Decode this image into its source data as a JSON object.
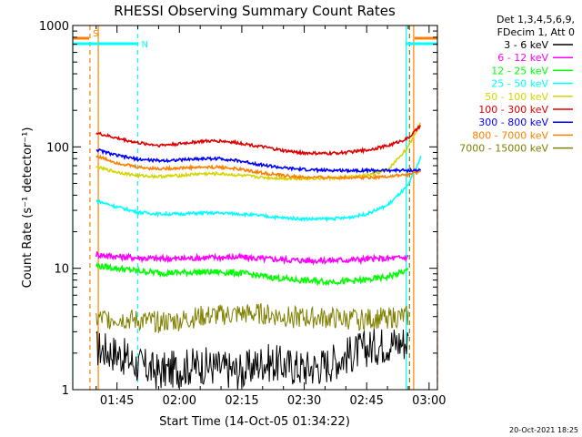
{
  "chart_data": {
    "type": "line",
    "title": "RHESSI Observing Summary Count Rates",
    "xlabel": "Start Time (14-Oct-05 01:34:22)",
    "ylabel": "Count Rate (s⁻¹ detector⁻¹)",
    "yscale": "log",
    "ylim": [
      1,
      1000
    ],
    "xlim_minutes": [
      94.37,
      182
    ],
    "x_ticks": [
      {
        "label": "01:45",
        "minutes": 105
      },
      {
        "label": "02:00",
        "minutes": 120
      },
      {
        "label": "02:15",
        "minutes": 135
      },
      {
        "label": "02:30",
        "minutes": 150
      },
      {
        "label": "02:45",
        "minutes": 165
      },
      {
        "label": "03:00",
        "minutes": 180
      }
    ],
    "y_ticks": [
      {
        "label": "1",
        "value": 1
      },
      {
        "label": "10",
        "value": 10
      },
      {
        "label": "100",
        "value": 100
      },
      {
        "label": "1000",
        "value": 1000
      }
    ],
    "grid": false,
    "legend_position": "right",
    "legend_header": [
      "Det 1,3,4,5,6,9,",
      "FDecim 1, Att 0"
    ],
    "legend": [
      {
        "label": "3 - 6 keV",
        "color": "#000000"
      },
      {
        "label": "6 - 12 keV",
        "color": "#ff00ff"
      },
      {
        "label": "12 - 25 keV",
        "color": "#00ff00"
      },
      {
        "label": "25 - 50 keV",
        "color": "#00ffff"
      },
      {
        "label": "50 - 100 keV",
        "color": "#d4d400"
      },
      {
        "label": "100 - 300 keV",
        "color": "#e00000"
      },
      {
        "label": "300 - 800 keV",
        "color": "#0000ff"
      },
      {
        "label": "800 - 7000 keV",
        "color": "#ff8000"
      },
      {
        "label": "7000 - 15000 keV",
        "color": "#808000"
      }
    ],
    "series": [
      {
        "name": "3 - 6 keV",
        "color": "#000000",
        "x": [
          100,
          105,
          110,
          115,
          120,
          125,
          130,
          135,
          140,
          145,
          150,
          155,
          160,
          165,
          170,
          175
        ],
        "y": [
          2.2,
          2.0,
          1.6,
          1.4,
          1.5,
          1.6,
          1.5,
          1.4,
          1.7,
          1.6,
          1.5,
          1.6,
          1.9,
          2.2,
          2.4,
          2.5
        ]
      },
      {
        "name": "6 - 12 keV",
        "color": "#ff00ff",
        "x": [
          100,
          105,
          110,
          115,
          120,
          125,
          130,
          135,
          140,
          145,
          150,
          155,
          160,
          165,
          170,
          175
        ],
        "y": [
          13.0,
          12.5,
          12.2,
          12.0,
          12.0,
          12.2,
          12.3,
          12.3,
          12.0,
          11.8,
          11.6,
          11.6,
          11.7,
          11.9,
          12.0,
          12.3
        ]
      },
      {
        "name": "12 - 25 keV",
        "color": "#00ff00",
        "x": [
          100,
          105,
          110,
          115,
          120,
          125,
          130,
          135,
          140,
          145,
          150,
          155,
          160,
          165,
          170,
          175
        ],
        "y": [
          10.5,
          10.0,
          9.5,
          9.2,
          9.2,
          9.3,
          9.3,
          9.1,
          8.6,
          8.2,
          7.9,
          7.8,
          7.8,
          8.0,
          8.5,
          9.6
        ]
      },
      {
        "name": "25 - 50 keV",
        "color": "#00ffff",
        "x": [
          100,
          105,
          110,
          115,
          120,
          125,
          130,
          135,
          140,
          145,
          150,
          155,
          160,
          165,
          170,
          175,
          178
        ],
        "y": [
          36,
          32,
          29,
          28,
          28,
          28.5,
          28.5,
          28,
          27,
          26,
          25.5,
          25.5,
          26,
          28,
          33,
          48,
          82
        ]
      },
      {
        "name": "50 - 100 keV",
        "color": "#d4d400",
        "x": [
          100,
          105,
          110,
          115,
          120,
          125,
          130,
          135,
          140,
          145,
          150,
          155,
          160,
          165,
          170,
          175,
          178
        ],
        "y": [
          68,
          62,
          58,
          57,
          58,
          60,
          60,
          58,
          56,
          55,
          55,
          55,
          56,
          58,
          64,
          100,
          160
        ]
      },
      {
        "name": "100 - 300 keV",
        "color": "#e00000",
        "x": [
          100,
          105,
          110,
          115,
          120,
          125,
          130,
          135,
          140,
          145,
          150,
          155,
          160,
          165,
          170,
          175,
          178
        ],
        "y": [
          130,
          118,
          108,
          103,
          106,
          111,
          112,
          107,
          100,
          93,
          89,
          88,
          90,
          94,
          102,
          118,
          150
        ]
      },
      {
        "name": "300 - 800 keV",
        "color": "#0000ff",
        "x": [
          100,
          105,
          110,
          115,
          120,
          125,
          130,
          135,
          140,
          145,
          150,
          155,
          160,
          165,
          170,
          175,
          178
        ],
        "y": [
          95,
          85,
          79,
          77,
          78,
          80,
          80,
          76,
          71,
          67,
          65,
          64,
          64,
          64,
          64,
          64,
          64
        ]
      },
      {
        "name": "800 - 7000 keV",
        "color": "#ff8000",
        "x": [
          100,
          105,
          110,
          115,
          120,
          125,
          130,
          135,
          140,
          145,
          150,
          155,
          160,
          165,
          170,
          175,
          178
        ],
        "y": [
          84,
          74,
          68,
          66,
          67,
          68,
          68,
          65,
          61,
          58,
          56,
          56,
          56,
          56,
          57,
          59,
          62
        ]
      },
      {
        "name": "7000 - 15000 keV",
        "color": "#808000",
        "x": [
          100,
          105,
          110,
          115,
          120,
          125,
          130,
          135,
          140,
          145,
          150,
          155,
          160,
          165,
          170,
          175
        ],
        "y": [
          3.8,
          3.9,
          3.7,
          3.6,
          3.7,
          4.0,
          4.1,
          4.2,
          4.2,
          4.0,
          3.9,
          3.9,
          3.8,
          3.8,
          3.9,
          4.0
        ]
      }
    ],
    "vertical_markers": [
      {
        "minutes": 94.37,
        "color": "#00ffff",
        "style": "solid"
      },
      {
        "minutes": 98.5,
        "color": "#ff8000",
        "style": "dashed"
      },
      {
        "minutes": 100.5,
        "color": "#ff8000",
        "style": "solid"
      },
      {
        "minutes": 110,
        "color": "#00ffff",
        "style": "dashed"
      },
      {
        "minutes": 174.5,
        "color": "#00ffff",
        "style": "solid"
      },
      {
        "minutes": 175.3,
        "color": "#808000",
        "style": "dashed"
      },
      {
        "minutes": 176.3,
        "color": "#ff8000",
        "style": "solid"
      },
      {
        "minutes": 182,
        "color": "#ff8000",
        "style": "dashed"
      }
    ],
    "flag_bars": [
      {
        "label": "S",
        "color": "#ff8000",
        "segments_minutes": [
          [
            94.37,
            98.3
          ],
          [
            176.5,
            182
          ]
        ]
      },
      {
        "label": "N",
        "color": "#00ffff",
        "segments_minutes": [
          [
            94.37,
            110
          ],
          [
            174.5,
            182
          ]
        ]
      }
    ]
  },
  "footer_timestamp": "20-Oct-2021 18:25"
}
